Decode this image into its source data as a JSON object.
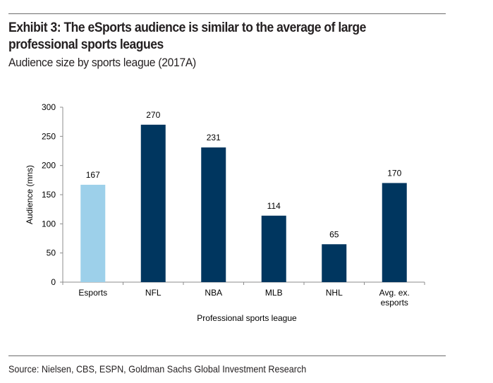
{
  "header": {
    "title": "Exhibit 3: The eSports audience is similar to the average of large professional sports leagues",
    "subtitle": "Audience size by sports league (2017A)"
  },
  "footer": {
    "source": "Source: Nielsen, CBS, ESPN, Goldman Sachs Global Investment Research"
  },
  "colors": {
    "highlight": "#9dd0ea",
    "primary": "#00365f",
    "axis": "#8c8c8c",
    "rule": "#6d6d6d"
  },
  "chart_data": {
    "type": "bar",
    "title": "Audience size by sports league (2017A)",
    "xlabel": "Professional sports league",
    "ylabel": "Audience (mns)",
    "categories": [
      "Esports",
      "NFL",
      "NBA",
      "MLB",
      "NHL",
      "Avg. ex. esports"
    ],
    "category_lines": [
      [
        "Esports"
      ],
      [
        "NFL"
      ],
      [
        "NBA"
      ],
      [
        "MLB"
      ],
      [
        "NHL"
      ],
      [
        "Avg. ex.",
        "esports"
      ]
    ],
    "values": [
      167,
      270,
      231,
      114,
      65,
      170
    ],
    "data_labels": [
      "167",
      "270",
      "231",
      "114",
      "65",
      "170"
    ],
    "highlight_index": 0,
    "ylim": [
      0,
      300
    ],
    "yticks": [
      0,
      50,
      100,
      150,
      200,
      250,
      300
    ],
    "grid": false,
    "legend": "none"
  }
}
